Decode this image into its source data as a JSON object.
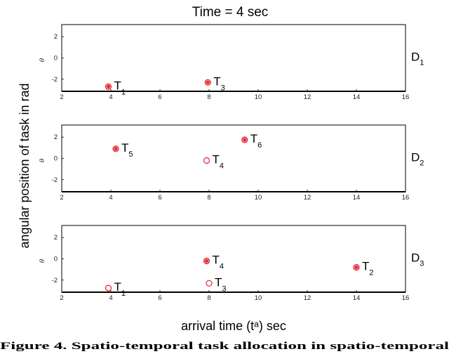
{
  "chart_data": {
    "type": "scatter",
    "title": "Time = 4 sec",
    "ylabel": "angular position of task in rad",
    "xlabel": "arrival time (tᵃ) sec",
    "caption": "Figure 4. Spatio-temporal task allocation in spatio-temporal",
    "subplot_ylabel": "θ",
    "colors": {
      "marker": "#e8202a",
      "axis": "#000000"
    },
    "xlim": [
      2,
      16
    ],
    "ylim": [
      -3.14,
      3.14
    ],
    "x_ticks": [
      2,
      4,
      6,
      8,
      10,
      12,
      14,
      16
    ],
    "y_ticks": [
      2,
      0,
      -2
    ],
    "panels": [
      {
        "label": "D",
        "label_sub": "1",
        "points": [
          {
            "x": 3.9,
            "y": -2.7,
            "name": "T",
            "sub": "1",
            "filled": true
          },
          {
            "x": 7.95,
            "y": -2.3,
            "name": "T",
            "sub": "3",
            "filled": true
          }
        ]
      },
      {
        "label": "D",
        "label_sub": "2",
        "points": [
          {
            "x": 4.2,
            "y": 0.9,
            "name": "T",
            "sub": "5",
            "filled": true
          },
          {
            "x": 9.45,
            "y": 1.75,
            "name": "T",
            "sub": "6",
            "filled": true
          },
          {
            "x": 7.9,
            "y": -0.2,
            "name": "T",
            "sub": "4",
            "filled": false
          }
        ]
      },
      {
        "label": "D",
        "label_sub": "3",
        "points": [
          {
            "x": 7.9,
            "y": -0.2,
            "name": "T",
            "sub": "4",
            "filled": true
          },
          {
            "x": 14.0,
            "y": -0.8,
            "name": "T",
            "sub": "2",
            "filled": true
          },
          {
            "x": 3.9,
            "y": -2.75,
            "name": "T",
            "sub": "1",
            "filled": false
          },
          {
            "x": 8.0,
            "y": -2.3,
            "name": "T",
            "sub": "3",
            "filled": false
          }
        ]
      }
    ]
  }
}
